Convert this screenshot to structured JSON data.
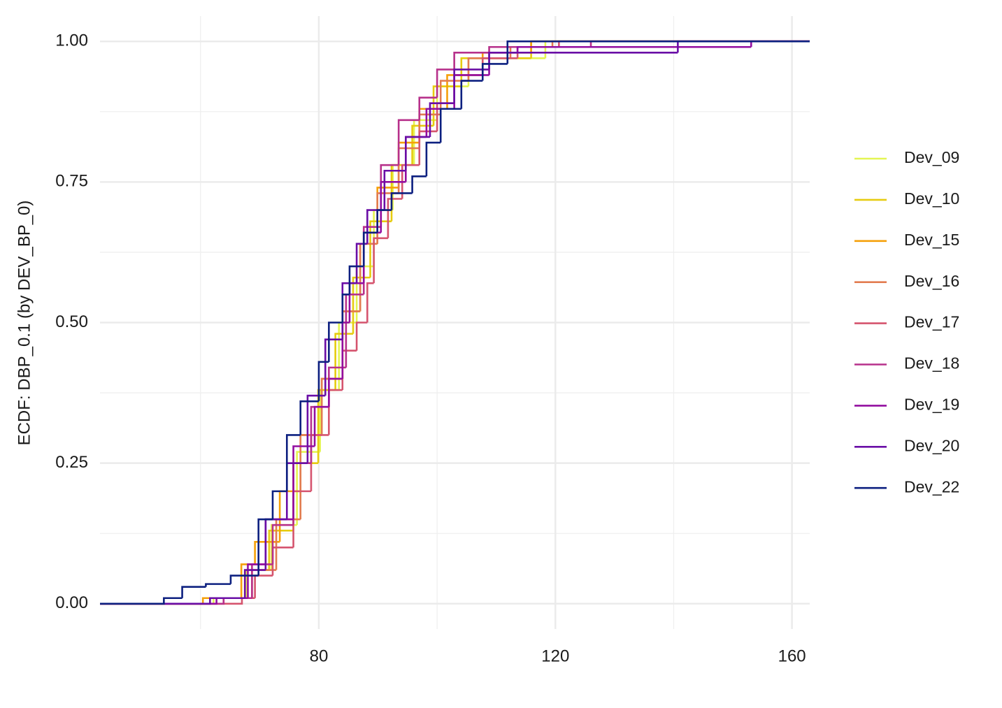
{
  "chart_data": {
    "type": "ecdf",
    "y_label": "ECDF: DBP_0.1 (by DEV_BP_0)",
    "xlim": [
      43,
      163
    ],
    "ylim": [
      -0.045,
      1.045
    ],
    "xticks": [
      80,
      120,
      160
    ],
    "x_minor_ticks": [
      60,
      100,
      140
    ],
    "yticks": [
      {
        "value": 0,
        "label": "0.00"
      },
      {
        "value": 0.25,
        "label": "0.25"
      },
      {
        "value": 0.5,
        "label": "0.50"
      },
      {
        "value": 0.75,
        "label": "0.75"
      },
      {
        "value": 1,
        "label": "1.00"
      }
    ],
    "y_minor_ticks": [
      0.125,
      0.375,
      0.625,
      0.875
    ],
    "grid": true,
    "legend": "right",
    "series": [
      {
        "name": "Dev_09",
        "color": "#e4f553",
        "x": [
          62.2,
          67.7,
          72,
          76.3,
          80.2,
          83.4,
          86.4,
          89.3,
          92.5,
          96.1,
          100,
          105.3,
          118.3
        ],
        "values": [
          0.01,
          0.06,
          0.14,
          0.27,
          0.38,
          0.5,
          0.6,
          0.7,
          0.78,
          0.86,
          0.92,
          0.97,
          1.0
        ]
      },
      {
        "name": "Dev_10",
        "color": "#e6cc10",
        "x": [
          61.6,
          67.5,
          71.6,
          75.7,
          79.9,
          82.8,
          85.8,
          88.7,
          92.3,
          95.8,
          99.4,
          104.1,
          115.9
        ],
        "values": [
          0.01,
          0.06,
          0.13,
          0.25,
          0.38,
          0.48,
          0.58,
          0.68,
          0.78,
          0.85,
          0.92,
          0.97,
          1.0
        ]
      },
      {
        "name": "Dev_15",
        "color": "#f5a00a",
        "x": [
          60.4,
          66.9,
          69.2,
          73.4,
          76.9,
          80.5,
          84,
          87,
          89.9,
          93.5,
          97,
          101.7,
          107.7,
          115.9
        ],
        "values": [
          0.01,
          0.07,
          0.11,
          0.2,
          0.3,
          0.4,
          0.52,
          0.64,
          0.74,
          0.82,
          0.88,
          0.94,
          0.98,
          1.0
        ]
      },
      {
        "name": "Dev_16",
        "color": "#e27c50",
        "x": [
          63.9,
          68.7,
          72.8,
          76.9,
          80.5,
          84,
          87,
          89.9,
          93.5,
          97,
          100.6,
          105.3,
          112.4,
          119.5
        ],
        "values": [
          0.01,
          0.06,
          0.15,
          0.3,
          0.4,
          0.52,
          0.64,
          0.73,
          0.81,
          0.87,
          0.93,
          0.97,
          0.99,
          1.0
        ]
      },
      {
        "name": "Dev_17",
        "color": "#d5546e",
        "x": [
          67,
          69.2,
          72.2,
          75.7,
          78.7,
          81.7,
          84,
          86.4,
          88.2,
          89.3,
          91.7,
          94.1,
          97,
          100,
          102.9,
          107.7,
          113.6,
          120.6
        ],
        "values": [
          0.01,
          0.05,
          0.1,
          0.2,
          0.3,
          0.38,
          0.45,
          0.5,
          0.57,
          0.65,
          0.72,
          0.78,
          0.84,
          0.89,
          0.94,
          0.97,
          0.99,
          1.0
        ]
      },
      {
        "name": "Dev_18",
        "color": "#b7318b",
        "x": [
          63.9,
          68.7,
          72.2,
          75.7,
          78.7,
          81.7,
          84.6,
          87.6,
          90.5,
          93.5,
          97,
          100,
          102.9,
          108.8,
          126
        ],
        "values": [
          0.01,
          0.07,
          0.14,
          0.25,
          0.35,
          0.42,
          0.55,
          0.67,
          0.78,
          0.86,
          0.9,
          0.95,
          0.98,
          0.99,
          1.0
        ]
      },
      {
        "name": "Dev_19",
        "color": "#930ea0",
        "x": [
          62.7,
          68,
          71,
          75.7,
          79.3,
          81.7,
          84,
          85.2,
          87.6,
          90.5,
          94.7,
          98.2,
          102.9,
          108.8,
          113.6,
          153.1
        ],
        "values": [
          0.01,
          0.07,
          0.15,
          0.28,
          0.35,
          0.4,
          0.5,
          0.57,
          0.66,
          0.75,
          0.83,
          0.88,
          0.94,
          0.98,
          0.99,
          1.0
        ]
      },
      {
        "name": "Dev_20",
        "color": "#6a0ea6",
        "x": [
          61.6,
          67.5,
          71,
          74.6,
          78.1,
          81.1,
          84,
          86.4,
          88.2,
          91.1,
          94.7,
          98.8,
          102.9,
          108.8,
          140.7
        ],
        "values": [
          0.01,
          0.06,
          0.15,
          0.25,
          0.37,
          0.47,
          0.57,
          0.64,
          0.7,
          0.77,
          0.83,
          0.89,
          0.95,
          0.98,
          1.0
        ]
      },
      {
        "name": "Dev_22",
        "color": "#0d2080",
        "x": [
          53.8,
          56.9,
          60.9,
          65.1,
          69.8,
          72.2,
          74.6,
          76.9,
          80,
          81.7,
          84,
          85.2,
          87.6,
          89.9,
          92.3,
          95.8,
          98.2,
          100.6,
          104.1,
          107.7,
          111.9
        ],
        "values": [
          0.01,
          0.03,
          0.035,
          0.05,
          0.15,
          0.2,
          0.3,
          0.36,
          0.43,
          0.5,
          0.55,
          0.6,
          0.66,
          0.7,
          0.73,
          0.76,
          0.82,
          0.88,
          0.93,
          0.96,
          1.0
        ]
      }
    ]
  }
}
